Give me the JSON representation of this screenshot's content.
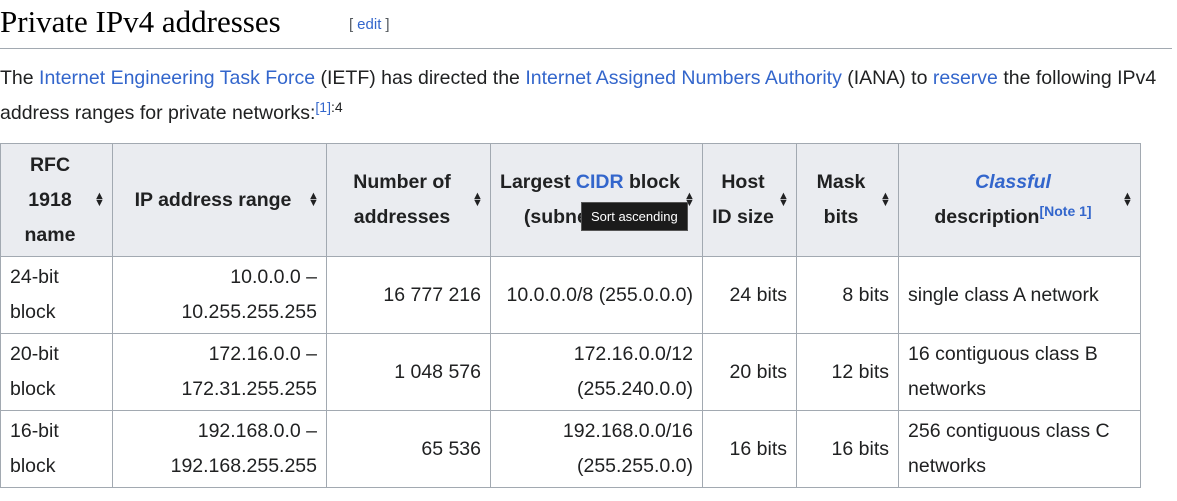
{
  "heading": {
    "title": "Private IPv4 addresses",
    "edit_open": "[",
    "edit_label": "edit",
    "edit_close": "]"
  },
  "intro": {
    "t1": "The ",
    "link_ietf": "Internet Engineering Task Force",
    "t2": " (IETF) has directed the ",
    "link_iana": "Internet Assigned Numbers Authority",
    "t3": " (IANA) to ",
    "link_reserve": "reserve",
    "t4": " the following IPv4 address ranges for private networks:",
    "ref": "[1]",
    "ref_page": ":4"
  },
  "table": {
    "headers": {
      "rfc": "RFC 1918 name",
      "range": "IP address range",
      "count": "Number of addresses",
      "cidr_pre": "Largest ",
      "cidr_link": "CIDR",
      "cidr_post": " block (subnet mask)",
      "host": "Host ID size",
      "mask": "Mask bits",
      "classful_link": "Classful",
      "classful_post": "description",
      "note": "[Note 1]"
    },
    "rows": [
      {
        "name": "24-bit block",
        "range": "10.0.0.0 – 10.255.255.255",
        "count": "16 777 216",
        "cidr": "10.0.0.0/8 (255.0.0.0)",
        "host": "24 bits",
        "mask": "8 bits",
        "desc": "single class A network"
      },
      {
        "name": "20-bit block",
        "range": "172.16.0.0 – 172.31.255.255",
        "count": "1 048 576",
        "cidr": "172.16.0.0/12 (255.240.0.0)",
        "host": "20 bits",
        "mask": "12 bits",
        "desc": "16 contiguous class B networks"
      },
      {
        "name": "16-bit block",
        "range": "192.168.0.0 – 192.168.255.255",
        "count": "65 536",
        "cidr": "192.168.0.0/16 (255.255.0.0)",
        "host": "16 bits",
        "mask": "16 bits",
        "desc": "256 contiguous class C networks"
      }
    ]
  },
  "tooltip": "Sort ascending",
  "colors": {
    "link": "#3366cc",
    "header_bg": "#eaecf0",
    "border": "#a2a9b1",
    "tooltip_bg": "#1b1b1b"
  },
  "icons": {
    "sort": "sort-arrows-icon"
  }
}
